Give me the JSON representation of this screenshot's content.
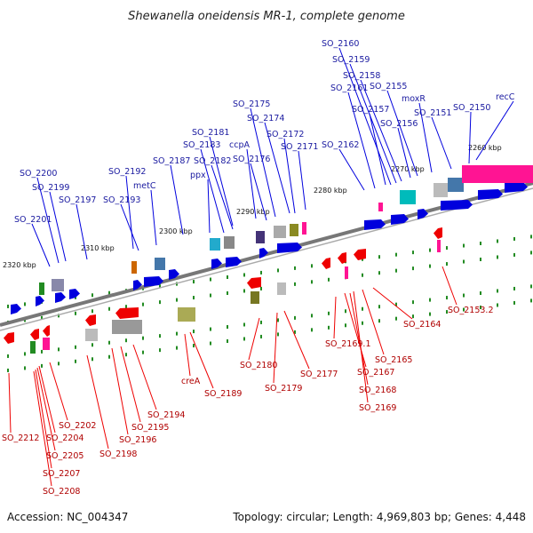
{
  "title": "Shewanella oneidensis MR-1, complete genome",
  "footer": {
    "accession": "Accession: NC_004347",
    "summary": "Topology: circular; Length: 4,969,803 bp; Genes: 4,448"
  },
  "scale_labels": [
    "2260 kbp",
    "2270 kbp",
    "2280 kbp",
    "2290 kbp",
    "2300 kbp",
    "2310 kbp",
    "2320 kbp"
  ],
  "forward_strand_genes": [
    "SO_2201",
    "SO_2200",
    "SO_2199",
    "SO_2197",
    "SO_2193",
    "SO_2192",
    "metC",
    "SO_2187",
    "ppx",
    "SO_2183",
    "SO_2182",
    "SO_2181",
    "SO_2176",
    "ccpA",
    "SO_2175",
    "SO_2174",
    "SO_2172",
    "SO_2171",
    "SO_2162",
    "SO_2161",
    "SO_2160",
    "SO_2159",
    "SO_2158",
    "SO_2157",
    "SO_2156",
    "SO_2155",
    "moxR",
    "SO_2151",
    "SO_2150",
    "recC"
  ],
  "reverse_strand_genes": [
    "SO_2212",
    "SO_2204",
    "SO_2205",
    "SO_2202",
    "SO_2207",
    "SO_2208",
    "SO_2198",
    "SO_2196",
    "SO_2195",
    "SO_2194",
    "creA",
    "SO_2189",
    "SO_2180",
    "SO_2179",
    "SO_2177",
    "SO_2169.1",
    "SO_2167",
    "SO_2165",
    "SO_2168",
    "SO_2169",
    "SO_2164",
    "SO_2153.2"
  ],
  "colors": {
    "forward_gene": "#0000dd",
    "reverse_gene": "#ee0000",
    "forward_label": "#1a1aa0",
    "reverse_label": "#b00000",
    "backbone": "#777777",
    "rna_magenta": "#ff1493",
    "tick_green": "#228b22"
  }
}
